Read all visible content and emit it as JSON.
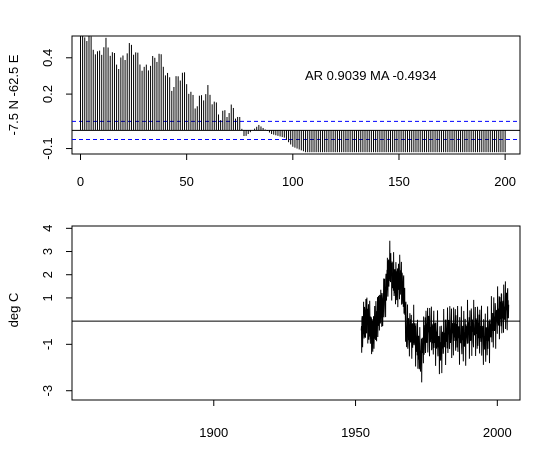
{
  "chart_data": [
    {
      "type": "bar",
      "title": "",
      "ylabel": "-7.5 N -62.5 E",
      "xlabel": "",
      "annotation": "AR 0.9039  MA -0.4934",
      "xlim": [
        -4,
        207
      ],
      "ylim": [
        -0.13,
        0.52
      ],
      "xticks": [
        0,
        50,
        100,
        150,
        200
      ],
      "xtick_labels": [
        "0",
        "50",
        "100",
        "150",
        "200"
      ],
      "yticks": [
        -0.1,
        0.2,
        0.4
      ],
      "ytick_labels": [
        "-0.1",
        "0.2",
        "0.4"
      ],
      "confidence_band": [
        -0.05,
        0.05
      ],
      "zero_line": 0,
      "max_lag": 200,
      "lag_profile": [
        [
          0,
          0.52
        ],
        [
          4,
          0.52
        ],
        [
          8,
          0.41
        ],
        [
          12,
          0.48
        ],
        [
          18,
          0.36
        ],
        [
          24,
          0.47
        ],
        [
          30,
          0.33
        ],
        [
          37,
          0.42
        ],
        [
          43,
          0.24
        ],
        [
          48,
          0.32
        ],
        [
          54,
          0.14
        ],
        [
          60,
          0.22
        ],
        [
          66,
          0.08
        ],
        [
          72,
          0.12
        ],
        [
          78,
          -0.03
        ],
        [
          84,
          0.03
        ],
        [
          90,
          -0.02
        ],
        [
          96,
          -0.04
        ],
        [
          100,
          -0.09
        ],
        [
          106,
          -0.12
        ],
        [
          150,
          -0.12
        ],
        [
          200,
          -0.12
        ]
      ]
    },
    {
      "type": "line",
      "title": "",
      "ylabel": "deg C",
      "xlabel": "",
      "xlim": [
        1850,
        2008
      ],
      "ylim": [
        -3.4,
        4.1
      ],
      "xticks": [
        1900,
        1950,
        2000
      ],
      "xtick_labels": [
        "1900",
        "1950",
        "2000"
      ],
      "yticks": [
        -3,
        -1,
        1,
        2,
        3,
        4
      ],
      "ytick_labels": [
        "-3",
        "-1",
        "1",
        "2",
        "3",
        "4"
      ],
      "zero_line": 0,
      "series_start": 1952,
      "series_end": 2004,
      "profile": [
        [
          1952,
          -0.4
        ],
        [
          1954,
          0.2
        ],
        [
          1956,
          -0.6
        ],
        [
          1958,
          0.3
        ],
        [
          1960,
          0.8
        ],
        [
          1962,
          2.4
        ],
        [
          1964,
          1.6
        ],
        [
          1966,
          1.8
        ],
        [
          1967,
          1.2
        ],
        [
          1968,
          -0.4
        ],
        [
          1971,
          -0.6
        ],
        [
          1973,
          -1.6
        ],
        [
          1975,
          -0.3
        ],
        [
          1978,
          -0.6
        ],
        [
          1980,
          -1.2
        ],
        [
          1982,
          -0.5
        ],
        [
          1985,
          -0.4
        ],
        [
          1988,
          -0.7
        ],
        [
          1990,
          -0.4
        ],
        [
          1993,
          -0.3
        ],
        [
          1996,
          -0.8
        ],
        [
          1998,
          -0.2
        ],
        [
          2000,
          0.2
        ],
        [
          2002,
          0.5
        ],
        [
          2004,
          0.7
        ]
      ]
    }
  ]
}
